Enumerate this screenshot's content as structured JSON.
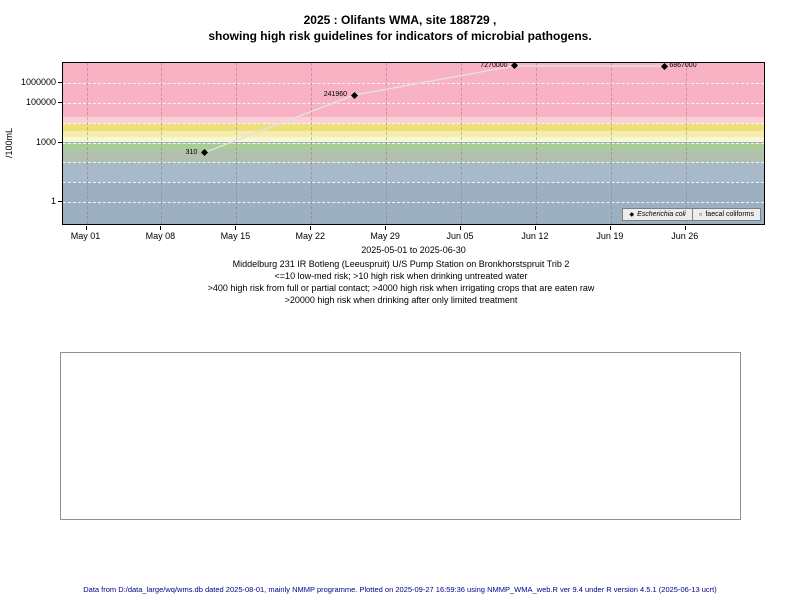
{
  "title": {
    "line1": "2025 : Olifants WMA, site 188729 ,",
    "line2": "showing high risk guidelines for indicators of microbial pathogens."
  },
  "y_axis": {
    "label": "/100mL",
    "ticks": [
      {
        "log": 6,
        "label": "1000000"
      },
      {
        "log": 5,
        "label": "100000"
      },
      {
        "log": 3,
        "label": "1000"
      },
      {
        "log": 0,
        "label": "1"
      }
    ]
  },
  "x_axis": {
    "label": "2025-05-01 to 2025-06-30",
    "ticks": [
      {
        "day": 0,
        "label": "May 01"
      },
      {
        "day": 7,
        "label": "May 08"
      },
      {
        "day": 14,
        "label": "May 15"
      },
      {
        "day": 21,
        "label": "May 22"
      },
      {
        "day": 28,
        "label": "May 29"
      },
      {
        "day": 35,
        "label": "Jun 05"
      },
      {
        "day": 42,
        "label": "Jun 12"
      },
      {
        "day": 49,
        "label": "Jun 19"
      },
      {
        "day": 56,
        "label": "Jun 26"
      }
    ]
  },
  "captions": [
    "Middelburg 231 IR Botleng (Leeuspruit) U/S Pump Station on Bronkhorstspruit Trib 2",
    "<=10 low-med risk; >10 high risk when drinking untreated water",
    ">400 high risk from full or partial contact; >4000 high risk when irrigating crops that are eaten raw",
    ">20000 high risk when drinking after only limited treatment"
  ],
  "footer": "Data from D:/data_large/wq/wms.db dated 2025-08-01, mainly NMMP programme. Plotted on 2025-09-27 16:59:36 using NMMP_WMA_web.R ver 9.4 under R version 4.5.1 (2025-06-13 ucrt)",
  "chart_data": {
    "type": "line",
    "title": "2025 : Olifants WMA, site 188729 , showing high risk guidelines for indicators of microbial pathogens.",
    "xlabel": "2025-05-01 to 2025-06-30",
    "ylabel": "/100mL",
    "y_scale": "log10",
    "y_domain_log": [
      -1.2,
      7.0
    ],
    "x_domain_days": [
      -2.2,
      63.5
    ],
    "h_grid_logs": [
      0,
      1,
      2,
      3,
      4,
      5,
      6
    ],
    "line_color": "#e2e2e2",
    "series": [
      {
        "name": "Escherichia coli",
        "marker": "filled-diamond",
        "color": "#000000",
        "points": [
          {
            "date": "2025-05-12",
            "day": 11,
            "value": 310,
            "label": "310",
            "label_side": "left"
          },
          {
            "date": "2025-05-26",
            "day": 25,
            "value": 241960,
            "label": "241960",
            "label_side": "left"
          },
          {
            "date": "2025-06-10",
            "day": 40,
            "value": 7270000,
            "label": "7270000",
            "label_side": "left"
          },
          {
            "date": "2025-06-24",
            "day": 54,
            "value": 6867000,
            "label": "6867000",
            "label_side": "right"
          }
        ]
      }
    ],
    "legend": [
      {
        "label": "Escherichia coli",
        "marker": "filled-diamond",
        "italic": true
      },
      {
        "label": "faecal coliforms",
        "marker": "open-circle",
        "italic": false
      }
    ],
    "bands": [
      {
        "from_log": 4.301,
        "to_log": 7.0,
        "color": "#f8b2c3"
      },
      {
        "from_log": 4.0,
        "to_log": 4.301,
        "color": "#fbcfda"
      },
      {
        "from_log": 3.602,
        "to_log": 4.0,
        "color": "#eedf80"
      },
      {
        "from_log": 3.301,
        "to_log": 3.602,
        "color": "#f5edac"
      },
      {
        "from_log": 3.0,
        "to_log": 3.301,
        "color": "#faf6d4"
      },
      {
        "from_log": 2.602,
        "to_log": 3.0,
        "color": "#a9cd96"
      },
      {
        "from_log": 2.0,
        "to_log": 2.602,
        "color": "#b1c1ae"
      },
      {
        "from_log": 1.0,
        "to_log": 2.0,
        "color": "#a8b9c9"
      },
      {
        "from_log": -1.2,
        "to_log": 1.0,
        "color": "#9db0c2"
      }
    ]
  }
}
